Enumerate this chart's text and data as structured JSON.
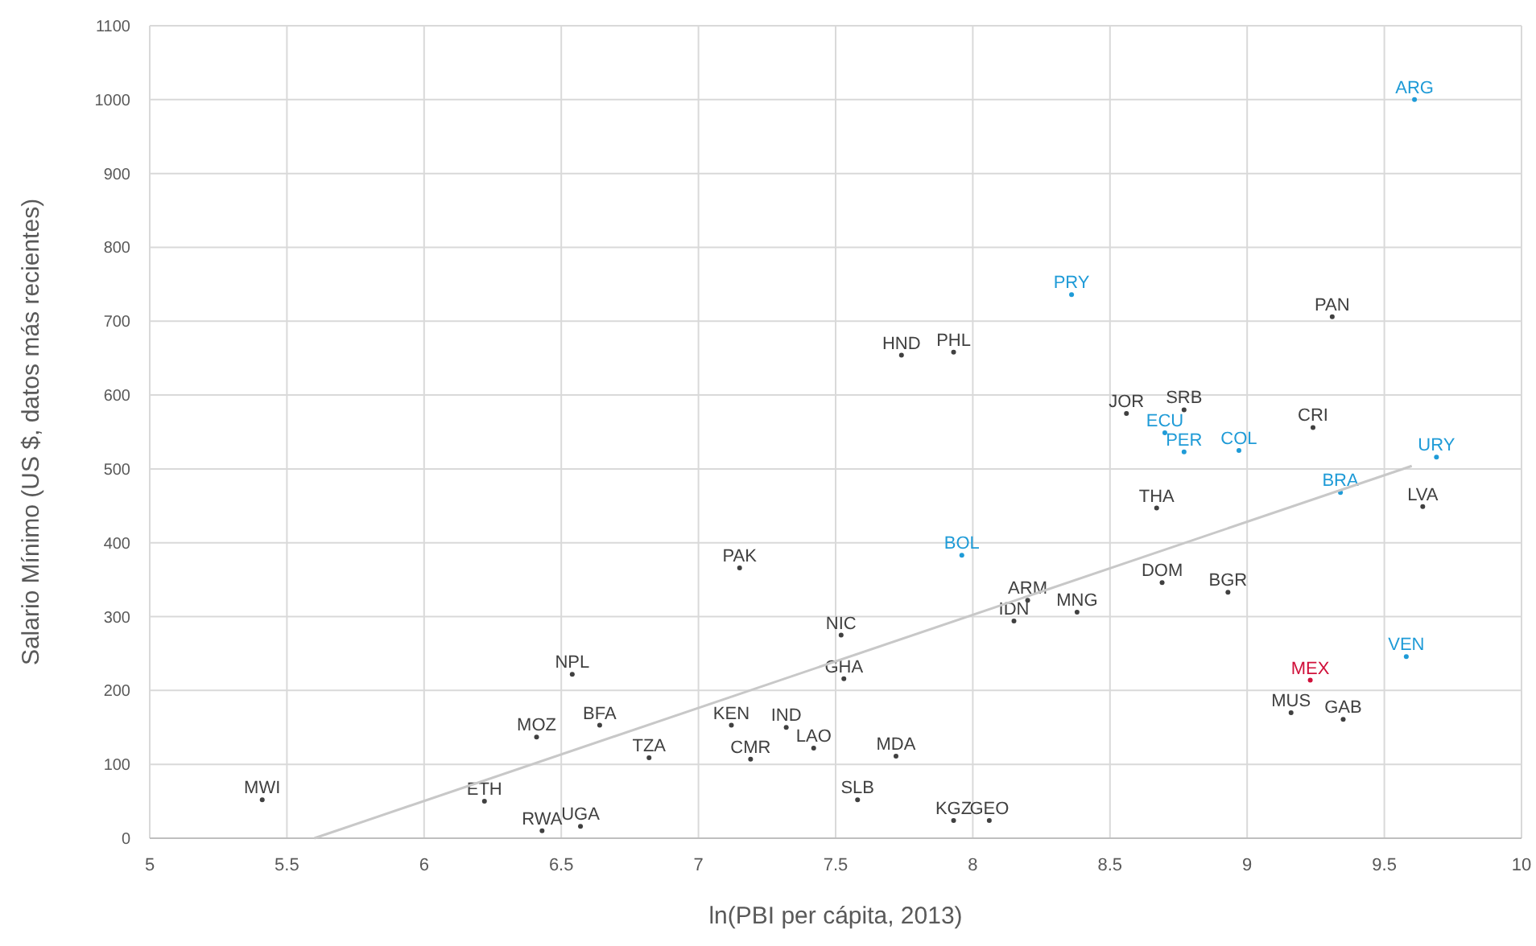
{
  "chart_data": {
    "type": "scatter",
    "xlabel": "ln(PBI per cápita, 2013)",
    "ylabel": "Salario Mínimo (US $, datos más recientes)",
    "xlim": [
      5,
      10
    ],
    "ylim": [
      0,
      1100
    ],
    "xticks": [
      5,
      5.5,
      6,
      6.5,
      7,
      7.5,
      8,
      8.5,
      9,
      9.5,
      10
    ],
    "yticks": [
      0,
      100,
      200,
      300,
      400,
      500,
      600,
      700,
      800,
      900,
      1000,
      1100
    ],
    "grid": true,
    "marker": "circle",
    "series": [
      {
        "color": "#404040",
        "x": [
          9.31,
          7.74,
          7.93,
          8.56,
          8.77,
          9.24,
          8.67,
          9.64,
          7.15,
          8.69,
          8.93,
          8.15,
          8.2,
          8.38,
          7.52,
          7.53,
          6.54,
          7.12,
          7.32,
          7.42,
          6.64,
          6.41,
          6.82,
          7.19,
          7.72,
          9.16,
          9.35,
          5.41,
          6.22,
          7.58,
          7.93,
          8.06,
          6.43,
          6.57
        ],
        "values": [
          706,
          654,
          658,
          575,
          580,
          556,
          447,
          449,
          366,
          346,
          333,
          294,
          322,
          306,
          275,
          216,
          222,
          153,
          150,
          122,
          153,
          137,
          109,
          107,
          111,
          170,
          161,
          52,
          50,
          52,
          24,
          24,
          10,
          16
        ],
        "value_labels": [
          "PAN",
          "HND",
          "PHL",
          "JOR",
          "SRB",
          "CRI",
          "THA",
          "LVA",
          "PAK",
          "DOM",
          "BGR",
          "IDN",
          "ARM",
          "MNG",
          "NIC",
          "GHA",
          "NPL",
          "KEN",
          "IND",
          "LAO",
          "BFA",
          "MOZ",
          "TZA",
          "CMR",
          "MDA",
          "MUS",
          "GAB",
          "MWI",
          "ETH",
          "SLB",
          "KGZ",
          "GEO",
          "RWA",
          "UGA"
        ]
      },
      {
        "color": "#1f9bd7",
        "x": [
          9.61,
          8.36,
          8.7,
          8.77,
          8.97,
          9.69,
          9.34,
          7.96,
          9.58
        ],
        "values": [
          1000,
          736,
          549,
          523,
          525,
          516,
          468,
          383,
          246
        ],
        "value_labels": [
          "ARG",
          "PRY",
          "ECU",
          "PER",
          "COL",
          "URY",
          "BRA",
          "BOL",
          "VEN"
        ]
      },
      {
        "color": "#d0103a",
        "x": [
          9.23
        ],
        "values": [
          214
        ],
        "value_labels": [
          "MEX"
        ]
      },
      {
        "type": "line",
        "marker": "none",
        "color": "#c8c8c8",
        "x": [
          5.6,
          9.6
        ],
        "values": [
          0,
          504
        ]
      }
    ]
  }
}
